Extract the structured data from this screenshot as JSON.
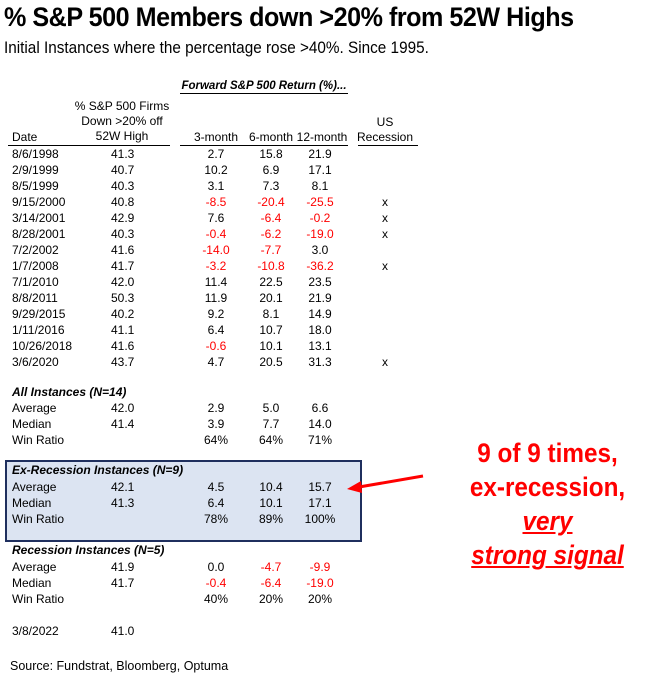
{
  "title": "% S&P 500 Members down >20% from 52W Highs",
  "subtitle": "Initial Instances where the percentage rose >40%. Since 1995.",
  "table": {
    "forward_header": "Forward S&P 500 Return (%)...",
    "columns": {
      "date": "Date",
      "pct_line1": "% S&P 500 Firms",
      "pct_line2": "Down >20% off",
      "pct_line3": "52W High",
      "m3": "3-month",
      "m6": "6-month",
      "m12": "12-month",
      "rec_line1": "US",
      "rec_line2": "Recession"
    },
    "rows": [
      {
        "date": "8/6/1998",
        "pct": "41.3",
        "m3": "2.7",
        "m6": "15.8",
        "m12": "21.9",
        "rec": ""
      },
      {
        "date": "2/9/1999",
        "pct": "40.7",
        "m3": "10.2",
        "m6": "6.9",
        "m12": "17.1",
        "rec": ""
      },
      {
        "date": "8/5/1999",
        "pct": "40.3",
        "m3": "3.1",
        "m6": "7.3",
        "m12": "8.1",
        "rec": ""
      },
      {
        "date": "9/15/2000",
        "pct": "40.8",
        "m3": "-8.5",
        "m6": "-20.4",
        "m12": "-25.5",
        "rec": "x"
      },
      {
        "date": "3/14/2001",
        "pct": "42.9",
        "m3": "7.6",
        "m6": "-6.4",
        "m12": "-0.2",
        "rec": "x"
      },
      {
        "date": "8/28/2001",
        "pct": "40.3",
        "m3": "-0.4",
        "m6": "-6.2",
        "m12": "-19.0",
        "rec": "x"
      },
      {
        "date": "7/2/2002",
        "pct": "41.6",
        "m3": "-14.0",
        "m6": "-7.7",
        "m12": "3.0",
        "rec": ""
      },
      {
        "date": "1/7/2008",
        "pct": "41.7",
        "m3": "-3.2",
        "m6": "-10.8",
        "m12": "-36.2",
        "rec": "x"
      },
      {
        "date": "7/1/2010",
        "pct": "42.0",
        "m3": "11.4",
        "m6": "22.5",
        "m12": "23.5",
        "rec": ""
      },
      {
        "date": "8/8/2011",
        "pct": "50.3",
        "m3": "11.9",
        "m6": "20.1",
        "m12": "21.9",
        "rec": ""
      },
      {
        "date": "9/29/2015",
        "pct": "40.2",
        "m3": "9.2",
        "m6": "8.1",
        "m12": "14.9",
        "rec": ""
      },
      {
        "date": "1/11/2016",
        "pct": "41.1",
        "m3": "6.4",
        "m6": "10.7",
        "m12": "18.0",
        "rec": ""
      },
      {
        "date": "10/26/2018",
        "pct": "41.6",
        "m3": "-0.6",
        "m6": "10.1",
        "m12": "13.1",
        "rec": ""
      },
      {
        "date": "3/6/2020",
        "pct": "43.7",
        "m3": "4.7",
        "m6": "20.5",
        "m12": "31.3",
        "rec": "x"
      }
    ]
  },
  "summary": {
    "all": {
      "title": "All Instances (N=14)",
      "rows": [
        {
          "label": "Average",
          "pct": "42.0",
          "m3": "2.9",
          "m6": "5.0",
          "m12": "6.6"
        },
        {
          "label": "Median",
          "pct": "41.4",
          "m3": "3.9",
          "m6": "7.7",
          "m12": "14.0"
        },
        {
          "label": "Win Ratio",
          "pct": "",
          "m3": "64%",
          "m6": "64%",
          "m12": "71%"
        }
      ]
    },
    "ex_recession": {
      "title": "Ex-Recession Instances (N=9)",
      "rows": [
        {
          "label": "Average",
          "pct": "42.1",
          "m3": "4.5",
          "m6": "10.4",
          "m12": "15.7"
        },
        {
          "label": "Median",
          "pct": "41.3",
          "m3": "6.4",
          "m6": "10.1",
          "m12": "17.1"
        },
        {
          "label": "Win Ratio",
          "pct": "",
          "m3": "78%",
          "m6": "89%",
          "m12": "100%"
        }
      ]
    },
    "recession": {
      "title": "Recession Instances (N=5)",
      "rows": [
        {
          "label": "Average",
          "pct": "41.9",
          "m3": "0.0",
          "m6": "-4.7",
          "m12": "-9.9"
        },
        {
          "label": "Median",
          "pct": "41.7",
          "m3": "-0.4",
          "m6": "-6.4",
          "m12": "-19.0"
        },
        {
          "label": "Win Ratio",
          "pct": "",
          "m3": "40%",
          "m6": "20%",
          "m12": "20%"
        }
      ]
    },
    "current": {
      "date": "3/8/2022",
      "pct": "41.0"
    }
  },
  "callout": {
    "line1": "9 of 9 times,",
    "line2": "ex-recession,",
    "line2_emph": "very",
    "line3_emph": "strong signal",
    "color": "#ff0000"
  },
  "source": "Source: Fundstrat, Bloomberg, Optuma",
  "colors": {
    "negative": "#ff0000",
    "box_fill": "#dce4f2",
    "box_border": "#1f2f5e"
  }
}
